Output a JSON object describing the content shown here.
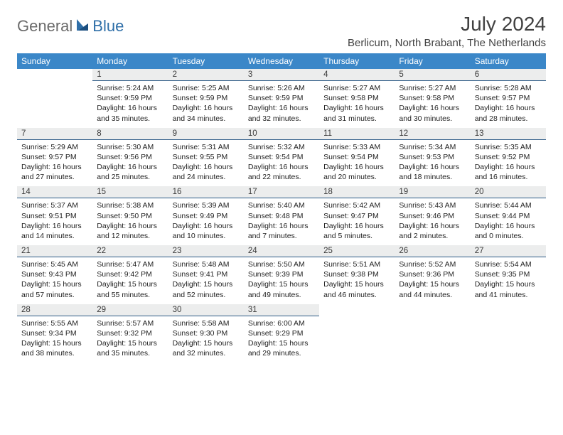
{
  "logo": {
    "general": "General",
    "blue": "Blue"
  },
  "title": "July 2024",
  "location": "Berlicum, North Brabant, The Netherlands",
  "header_bg": "#3b87c8",
  "daynum_bg": "#eceded",
  "daynum_border": "#2c5a86",
  "days": [
    "Sunday",
    "Monday",
    "Tuesday",
    "Wednesday",
    "Thursday",
    "Friday",
    "Saturday"
  ],
  "weeks": [
    [
      null,
      {
        "n": "1",
        "sr": "5:24 AM",
        "ss": "9:59 PM",
        "dl": "16 hours and 35 minutes."
      },
      {
        "n": "2",
        "sr": "5:25 AM",
        "ss": "9:59 PM",
        "dl": "16 hours and 34 minutes."
      },
      {
        "n": "3",
        "sr": "5:26 AM",
        "ss": "9:59 PM",
        "dl": "16 hours and 32 minutes."
      },
      {
        "n": "4",
        "sr": "5:27 AM",
        "ss": "9:58 PM",
        "dl": "16 hours and 31 minutes."
      },
      {
        "n": "5",
        "sr": "5:27 AM",
        "ss": "9:58 PM",
        "dl": "16 hours and 30 minutes."
      },
      {
        "n": "6",
        "sr": "5:28 AM",
        "ss": "9:57 PM",
        "dl": "16 hours and 28 minutes."
      }
    ],
    [
      {
        "n": "7",
        "sr": "5:29 AM",
        "ss": "9:57 PM",
        "dl": "16 hours and 27 minutes."
      },
      {
        "n": "8",
        "sr": "5:30 AM",
        "ss": "9:56 PM",
        "dl": "16 hours and 25 minutes."
      },
      {
        "n": "9",
        "sr": "5:31 AM",
        "ss": "9:55 PM",
        "dl": "16 hours and 24 minutes."
      },
      {
        "n": "10",
        "sr": "5:32 AM",
        "ss": "9:54 PM",
        "dl": "16 hours and 22 minutes."
      },
      {
        "n": "11",
        "sr": "5:33 AM",
        "ss": "9:54 PM",
        "dl": "16 hours and 20 minutes."
      },
      {
        "n": "12",
        "sr": "5:34 AM",
        "ss": "9:53 PM",
        "dl": "16 hours and 18 minutes."
      },
      {
        "n": "13",
        "sr": "5:35 AM",
        "ss": "9:52 PM",
        "dl": "16 hours and 16 minutes."
      }
    ],
    [
      {
        "n": "14",
        "sr": "5:37 AM",
        "ss": "9:51 PM",
        "dl": "16 hours and 14 minutes."
      },
      {
        "n": "15",
        "sr": "5:38 AM",
        "ss": "9:50 PM",
        "dl": "16 hours and 12 minutes."
      },
      {
        "n": "16",
        "sr": "5:39 AM",
        "ss": "9:49 PM",
        "dl": "16 hours and 10 minutes."
      },
      {
        "n": "17",
        "sr": "5:40 AM",
        "ss": "9:48 PM",
        "dl": "16 hours and 7 minutes."
      },
      {
        "n": "18",
        "sr": "5:42 AM",
        "ss": "9:47 PM",
        "dl": "16 hours and 5 minutes."
      },
      {
        "n": "19",
        "sr": "5:43 AM",
        "ss": "9:46 PM",
        "dl": "16 hours and 2 minutes."
      },
      {
        "n": "20",
        "sr": "5:44 AM",
        "ss": "9:44 PM",
        "dl": "16 hours and 0 minutes."
      }
    ],
    [
      {
        "n": "21",
        "sr": "5:45 AM",
        "ss": "9:43 PM",
        "dl": "15 hours and 57 minutes."
      },
      {
        "n": "22",
        "sr": "5:47 AM",
        "ss": "9:42 PM",
        "dl": "15 hours and 55 minutes."
      },
      {
        "n": "23",
        "sr": "5:48 AM",
        "ss": "9:41 PM",
        "dl": "15 hours and 52 minutes."
      },
      {
        "n": "24",
        "sr": "5:50 AM",
        "ss": "9:39 PM",
        "dl": "15 hours and 49 minutes."
      },
      {
        "n": "25",
        "sr": "5:51 AM",
        "ss": "9:38 PM",
        "dl": "15 hours and 46 minutes."
      },
      {
        "n": "26",
        "sr": "5:52 AM",
        "ss": "9:36 PM",
        "dl": "15 hours and 44 minutes."
      },
      {
        "n": "27",
        "sr": "5:54 AM",
        "ss": "9:35 PM",
        "dl": "15 hours and 41 minutes."
      }
    ],
    [
      {
        "n": "28",
        "sr": "5:55 AM",
        "ss": "9:34 PM",
        "dl": "15 hours and 38 minutes."
      },
      {
        "n": "29",
        "sr": "5:57 AM",
        "ss": "9:32 PM",
        "dl": "15 hours and 35 minutes."
      },
      {
        "n": "30",
        "sr": "5:58 AM",
        "ss": "9:30 PM",
        "dl": "15 hours and 32 minutes."
      },
      {
        "n": "31",
        "sr": "6:00 AM",
        "ss": "9:29 PM",
        "dl": "15 hours and 29 minutes."
      },
      null,
      null,
      null
    ]
  ],
  "labels": {
    "sunrise": "Sunrise: ",
    "sunset": "Sunset: ",
    "daylight": "Daylight: "
  }
}
